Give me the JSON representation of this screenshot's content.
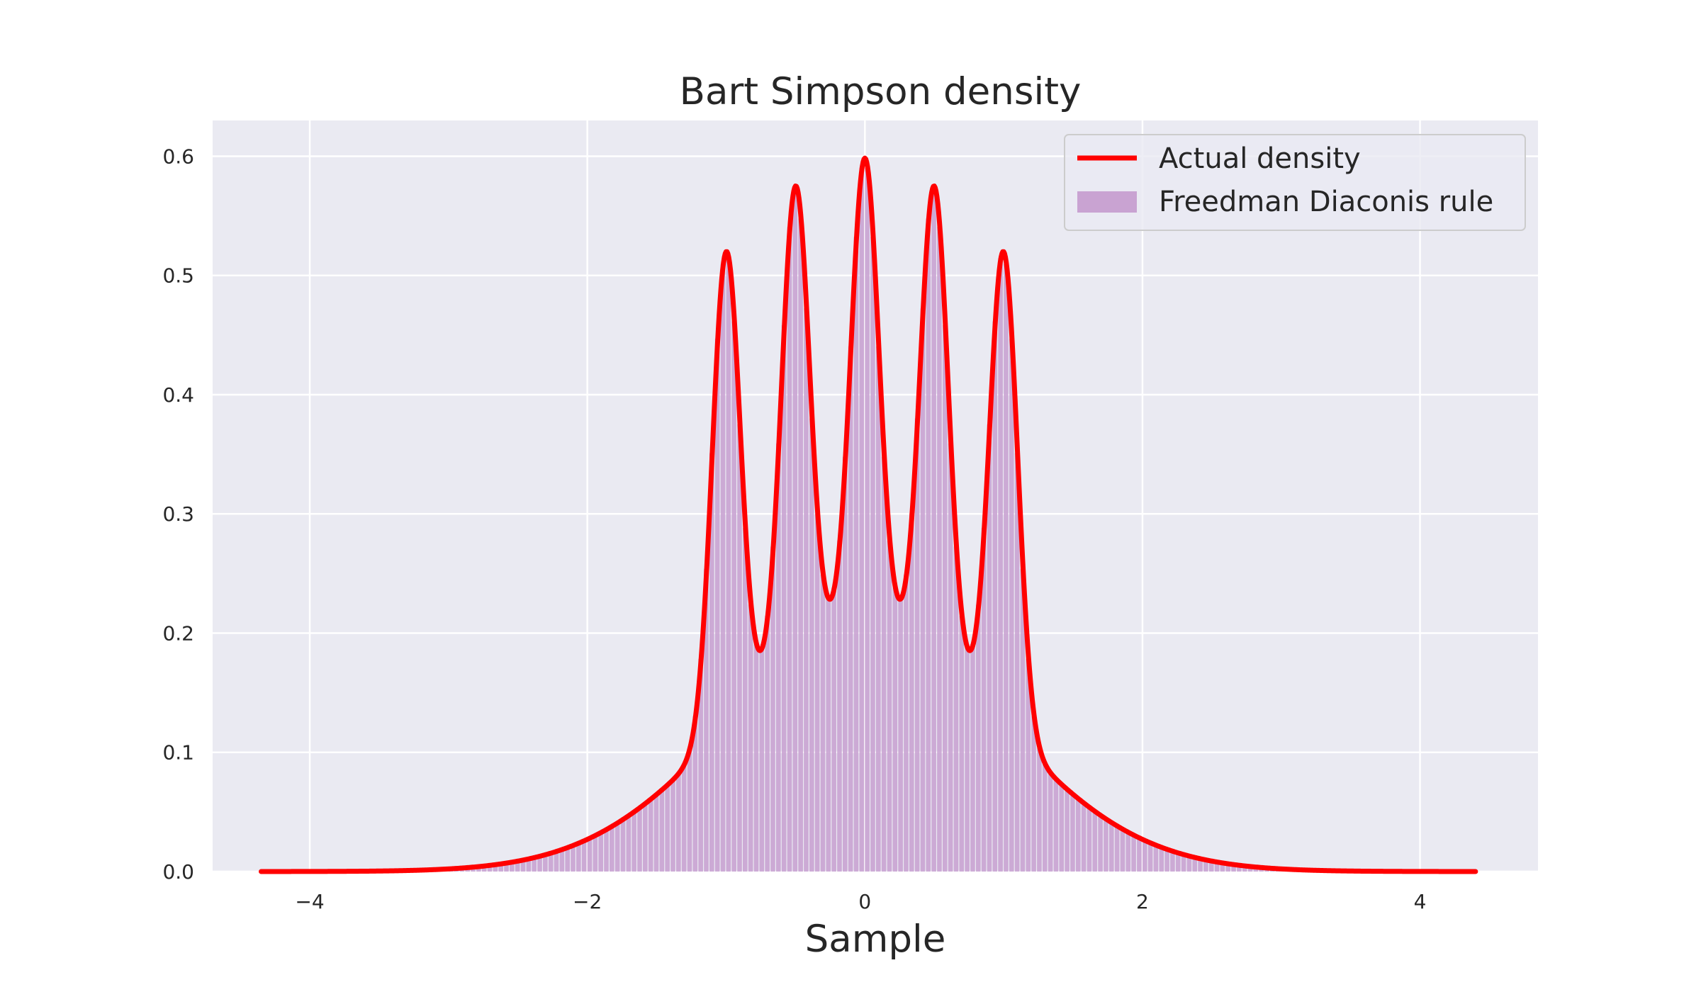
{
  "chart_data": {
    "type": "area",
    "title": "Bart Simpson density",
    "xlabel": "Sample",
    "ylabel": "",
    "xlim": [
      -4.7,
      4.85
    ],
    "ylim": [
      0,
      0.63
    ],
    "x_ticks": [
      -4,
      -2,
      0,
      2,
      4
    ],
    "x_tick_labels": [
      "−4",
      "−2",
      "0",
      "2",
      "4"
    ],
    "y_ticks": [
      0.0,
      0.1,
      0.2,
      0.3,
      0.4,
      0.5,
      0.6
    ],
    "y_tick_labels": [
      "0.0",
      "0.1",
      "0.2",
      "0.3",
      "0.4",
      "0.5",
      "0.6"
    ],
    "grid": true,
    "legend_position": "top-right",
    "series": [
      {
        "name": "Actual density",
        "kind": "line",
        "color": "#ff0000",
        "density": {
          "components": [
            {
              "weight": 0.5,
              "mean": 0.0,
              "sd": 1.0
            },
            {
              "weight": 0.1,
              "mean": -1.0,
              "sd": 0.1
            },
            {
              "weight": 0.1,
              "mean": -0.5,
              "sd": 0.1
            },
            {
              "weight": 0.1,
              "mean": 0.0,
              "sd": 0.1
            },
            {
              "weight": 0.1,
              "mean": 0.5,
              "sd": 0.1
            },
            {
              "weight": 0.1,
              "mean": 1.0,
              "sd": 0.1
            }
          ],
          "x_range": [
            -4.35,
            4.4
          ]
        },
        "peaks": [
          {
            "x": -1.0,
            "y": 0.52
          },
          {
            "x": -0.5,
            "y": 0.575
          },
          {
            "x": 0.0,
            "y": 0.6
          },
          {
            "x": 0.5,
            "y": 0.575
          },
          {
            "x": 1.0,
            "y": 0.52
          }
        ],
        "troughs": [
          {
            "x": -0.75,
            "y": 0.185
          },
          {
            "x": -0.25,
            "y": 0.228
          },
          {
            "x": 0.25,
            "y": 0.228
          },
          {
            "x": 0.75,
            "y": 0.185
          }
        ]
      },
      {
        "name": "Freedman Diaconis rule",
        "kind": "histogram",
        "color": "#c9a3d2",
        "bin_width": 0.04,
        "range": [
          -3.0,
          3.2
        ]
      }
    ]
  }
}
